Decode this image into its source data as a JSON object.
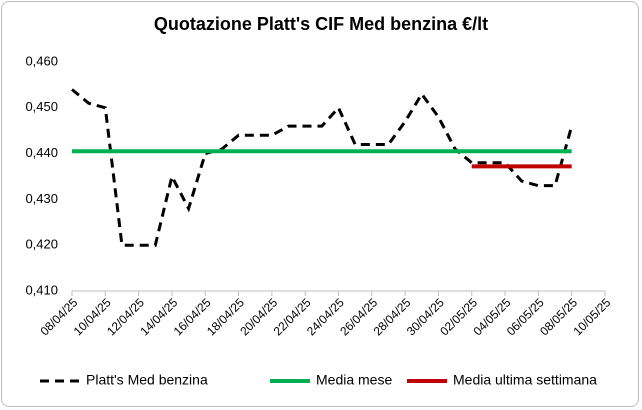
{
  "chart_data": {
    "type": "line",
    "title": "Quotazione Platt's CIF Med benzina €/lt",
    "series": [
      {
        "name": "Platt's Med benzina",
        "color": "#000000",
        "dash": true,
        "x": [
          "2025-04-08",
          "2025-04-09",
          "2025-04-10",
          "2025-04-11",
          "2025-04-12",
          "2025-04-13",
          "2025-04-14",
          "2025-04-15",
          "2025-04-16",
          "2025-04-17",
          "2025-04-18",
          "2025-04-19",
          "2025-04-20",
          "2025-04-21",
          "2025-04-22",
          "2025-04-23",
          "2025-04-24",
          "2025-04-25",
          "2025-04-26",
          "2025-04-27",
          "2025-04-28",
          "2025-04-29",
          "2025-04-30",
          "2025-05-01",
          "2025-05-02",
          "2025-05-03",
          "2025-05-04",
          "2025-05-05",
          "2025-05-06",
          "2025-05-07",
          "2025-05-08"
        ],
        "values": [
          0.454,
          0.451,
          0.45,
          0.42,
          0.42,
          0.42,
          0.435,
          0.428,
          0.44,
          0.441,
          0.444,
          0.444,
          0.444,
          0.446,
          0.446,
          0.446,
          0.45,
          0.442,
          0.442,
          0.442,
          0.447,
          0.453,
          0.448,
          0.441,
          0.438,
          0.438,
          0.438,
          0.434,
          0.433,
          0.433,
          0.446
        ]
      },
      {
        "name": "Media mese",
        "color": "#00b050",
        "dash": false,
        "x": [
          "2025-04-08",
          "2025-05-08"
        ],
        "values": [
          0.4405,
          0.4405
        ]
      },
      {
        "name": "Media ultima settimana",
        "color": "#c00000",
        "dash": false,
        "x": [
          "2025-05-02",
          "2025-05-08"
        ],
        "values": [
          0.4372,
          0.4372
        ]
      }
    ],
    "xlim": [
      "2025-04-08",
      "2025-05-10"
    ],
    "xticks": [
      {
        "value": "2025-04-08",
        "label": "08/04/25"
      },
      {
        "value": "2025-04-10",
        "label": "10/04/25"
      },
      {
        "value": "2025-04-12",
        "label": "12/04/25"
      },
      {
        "value": "2025-04-14",
        "label": "14/04/25"
      },
      {
        "value": "2025-04-16",
        "label": "16/04/25"
      },
      {
        "value": "2025-04-18",
        "label": "18/04/25"
      },
      {
        "value": "2025-04-20",
        "label": "20/04/25"
      },
      {
        "value": "2025-04-22",
        "label": "22/04/25"
      },
      {
        "value": "2025-04-24",
        "label": "24/04/25"
      },
      {
        "value": "2025-04-26",
        "label": "26/04/25"
      },
      {
        "value": "2025-04-28",
        "label": "28/04/25"
      },
      {
        "value": "2025-04-30",
        "label": "30/04/25"
      },
      {
        "value": "2025-05-02",
        "label": "02/05/25"
      },
      {
        "value": "2025-05-04",
        "label": "04/05/25"
      },
      {
        "value": "2025-05-06",
        "label": "06/05/25"
      },
      {
        "value": "2025-05-08",
        "label": "08/05/25"
      },
      {
        "value": "2025-05-10",
        "label": "10/05/25"
      }
    ],
    "ylim": [
      0.41,
      0.46
    ],
    "yticks": [
      {
        "value": 0.41,
        "label": "0,410"
      },
      {
        "value": 0.42,
        "label": "0,420"
      },
      {
        "value": 0.43,
        "label": "0,430"
      },
      {
        "value": 0.44,
        "label": "0,440"
      },
      {
        "value": 0.45,
        "label": "0,450"
      },
      {
        "value": 0.46,
        "label": "0,460"
      }
    ],
    "grid": false,
    "legend": "bottom"
  }
}
